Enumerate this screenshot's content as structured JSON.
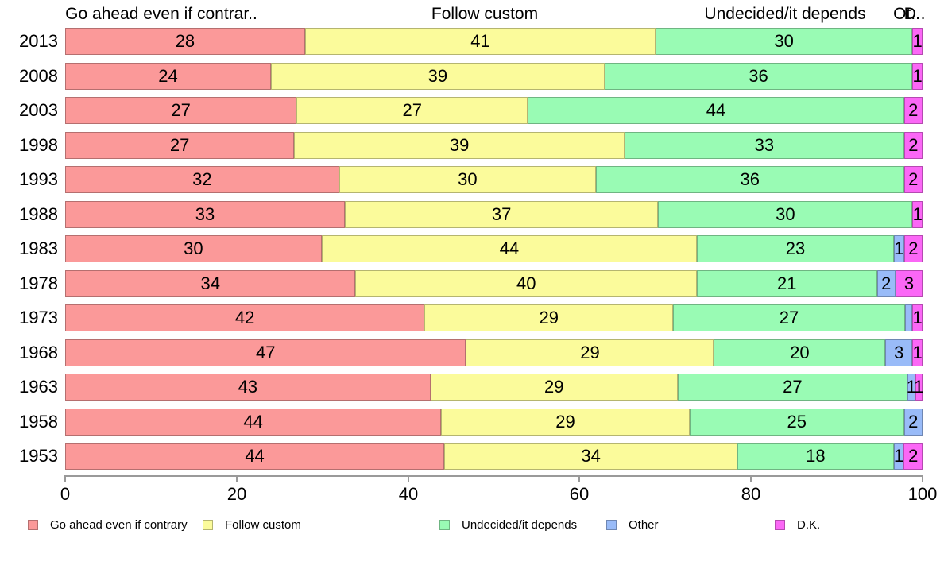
{
  "chart_data": {
    "type": "bar",
    "stacked": true,
    "orientation": "horizontal",
    "title": "",
    "column_headers": [
      {
        "text": "Go ahead even if contrar.."
      },
      {
        "text": "Follow custom"
      },
      {
        "text": "Undecided/it depends"
      },
      {
        "text": "Ot.."
      },
      {
        "text": "D.."
      }
    ],
    "legend": [
      {
        "label": "Go ahead even if contrary",
        "color": "#fb9999",
        "border": "#b56f6f"
      },
      {
        "label": "Follow custom",
        "color": "#fbfb9b",
        "border": "#b5b570"
      },
      {
        "label": "Undecided/it depends",
        "color": "#99fbb4",
        "border": "#6fb582"
      },
      {
        "label": "Other",
        "color": "#99bbf8",
        "border": "#6f87b3"
      },
      {
        "label": "D.K.",
        "color": "#fb67f6",
        "border": "#b54ab1"
      }
    ],
    "x_axis": {
      "min": 0,
      "max": 100,
      "ticks": [
        "0",
        "20",
        "40",
        "60",
        "80",
        "100"
      ]
    },
    "rows": [
      {
        "year": "2013",
        "segments": [
          {
            "value": 28,
            "label": "28"
          },
          {
            "value": 41,
            "label": "41"
          },
          {
            "value": 30,
            "label": "30"
          },
          {
            "value": 0,
            "label": ""
          },
          {
            "value": 1,
            "label": "1"
          }
        ]
      },
      {
        "year": "2008",
        "segments": [
          {
            "value": 24,
            "label": "24"
          },
          {
            "value": 39,
            "label": "39"
          },
          {
            "value": 36,
            "label": "36"
          },
          {
            "value": 0,
            "label": ""
          },
          {
            "value": 1,
            "label": "1"
          }
        ]
      },
      {
        "year": "2003",
        "segments": [
          {
            "value": 27,
            "label": "27"
          },
          {
            "value": 27,
            "label": "27"
          },
          {
            "value": 44,
            "label": "44"
          },
          {
            "value": 0,
            "label": ""
          },
          {
            "value": 2,
            "label": "2"
          }
        ]
      },
      {
        "year": "1998",
        "segments": [
          {
            "value": 27,
            "label": "27"
          },
          {
            "value": 39,
            "label": "39"
          },
          {
            "value": 33,
            "label": "33"
          },
          {
            "value": 0,
            "label": ""
          },
          {
            "value": 2,
            "label": "2"
          }
        ]
      },
      {
        "year": "1993",
        "segments": [
          {
            "value": 32,
            "label": "32"
          },
          {
            "value": 30,
            "label": "30"
          },
          {
            "value": 36,
            "label": "36"
          },
          {
            "value": 0,
            "label": ""
          },
          {
            "value": 2,
            "label": "2"
          }
        ]
      },
      {
        "year": "1988",
        "segments": [
          {
            "value": 33,
            "label": "33"
          },
          {
            "value": 37,
            "label": "37"
          },
          {
            "value": 30,
            "label": "30"
          },
          {
            "value": 0,
            "label": ""
          },
          {
            "value": 1,
            "label": "1"
          }
        ]
      },
      {
        "year": "1983",
        "segments": [
          {
            "value": 30,
            "label": "30"
          },
          {
            "value": 44,
            "label": "44"
          },
          {
            "value": 23,
            "label": "23"
          },
          {
            "value": 1,
            "label": "1"
          },
          {
            "value": 2,
            "label": "2"
          }
        ]
      },
      {
        "year": "1978",
        "segments": [
          {
            "value": 34,
            "label": "34"
          },
          {
            "value": 40,
            "label": "40"
          },
          {
            "value": 21,
            "label": "21"
          },
          {
            "value": 2,
            "label": "2"
          },
          {
            "value": 3,
            "label": "3"
          }
        ]
      },
      {
        "year": "1973",
        "segments": [
          {
            "value": 42,
            "label": "42"
          },
          {
            "value": 29,
            "label": "29"
          },
          {
            "value": 27,
            "label": "27"
          },
          {
            "value": 0.7,
            "label": ""
          },
          {
            "value": 1,
            "label": "1"
          }
        ]
      },
      {
        "year": "1968",
        "segments": [
          {
            "value": 47,
            "label": "47"
          },
          {
            "value": 29,
            "label": "29"
          },
          {
            "value": 20,
            "label": "20"
          },
          {
            "value": 3,
            "label": "3"
          },
          {
            "value": 1,
            "label": "1"
          }
        ]
      },
      {
        "year": "1963",
        "segments": [
          {
            "value": 43,
            "label": "43"
          },
          {
            "value": 29,
            "label": "29"
          },
          {
            "value": 27,
            "label": "27"
          },
          {
            "value": 0.7,
            "label": "1"
          },
          {
            "value": 0.7,
            "label": "1"
          }
        ]
      },
      {
        "year": "1958",
        "segments": [
          {
            "value": 44,
            "label": "44"
          },
          {
            "value": 29,
            "label": "29"
          },
          {
            "value": 25,
            "label": "25"
          },
          {
            "value": 2,
            "label": "2"
          },
          {
            "value": 0,
            "label": ""
          }
        ]
      },
      {
        "year": "1953",
        "segments": [
          {
            "value": 44,
            "label": "44"
          },
          {
            "value": 34,
            "label": "34"
          },
          {
            "value": 18,
            "label": "18"
          },
          {
            "value": 1,
            "label": "1"
          },
          {
            "value": 2,
            "label": "2"
          }
        ]
      }
    ]
  }
}
